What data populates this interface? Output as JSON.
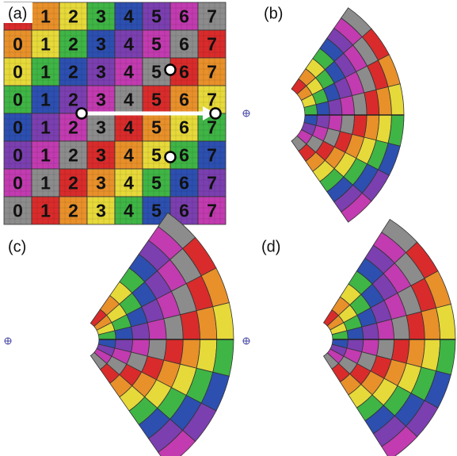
{
  "panels": [
    {
      "label": "(a)",
      "grid": [
        [
          null,
          "1",
          "2",
          "3",
          "4",
          "5",
          "6",
          "7"
        ],
        [
          "0",
          "1",
          "2",
          "3",
          "4",
          "5",
          "6",
          "7"
        ],
        [
          "0",
          "1",
          "2",
          "3",
          "4",
          "5",
          "6",
          "7"
        ],
        [
          "0",
          "1",
          "2",
          "3",
          "4",
          "5",
          "6",
          "7"
        ],
        [
          "0",
          "1",
          "2",
          "3",
          "4",
          "5",
          "6",
          "7"
        ],
        [
          "0",
          "1",
          "2",
          "3",
          "4",
          "5",
          "6",
          "7"
        ],
        [
          "0",
          "1",
          "2",
          "3",
          "4",
          "5",
          "6",
          "7"
        ],
        [
          "0",
          "1",
          "2",
          "3",
          "4",
          "5",
          "6",
          "7"
        ]
      ]
    },
    {
      "label": "(b)"
    },
    {
      "label": "(c)"
    },
    {
      "label": "(d)"
    }
  ]
}
